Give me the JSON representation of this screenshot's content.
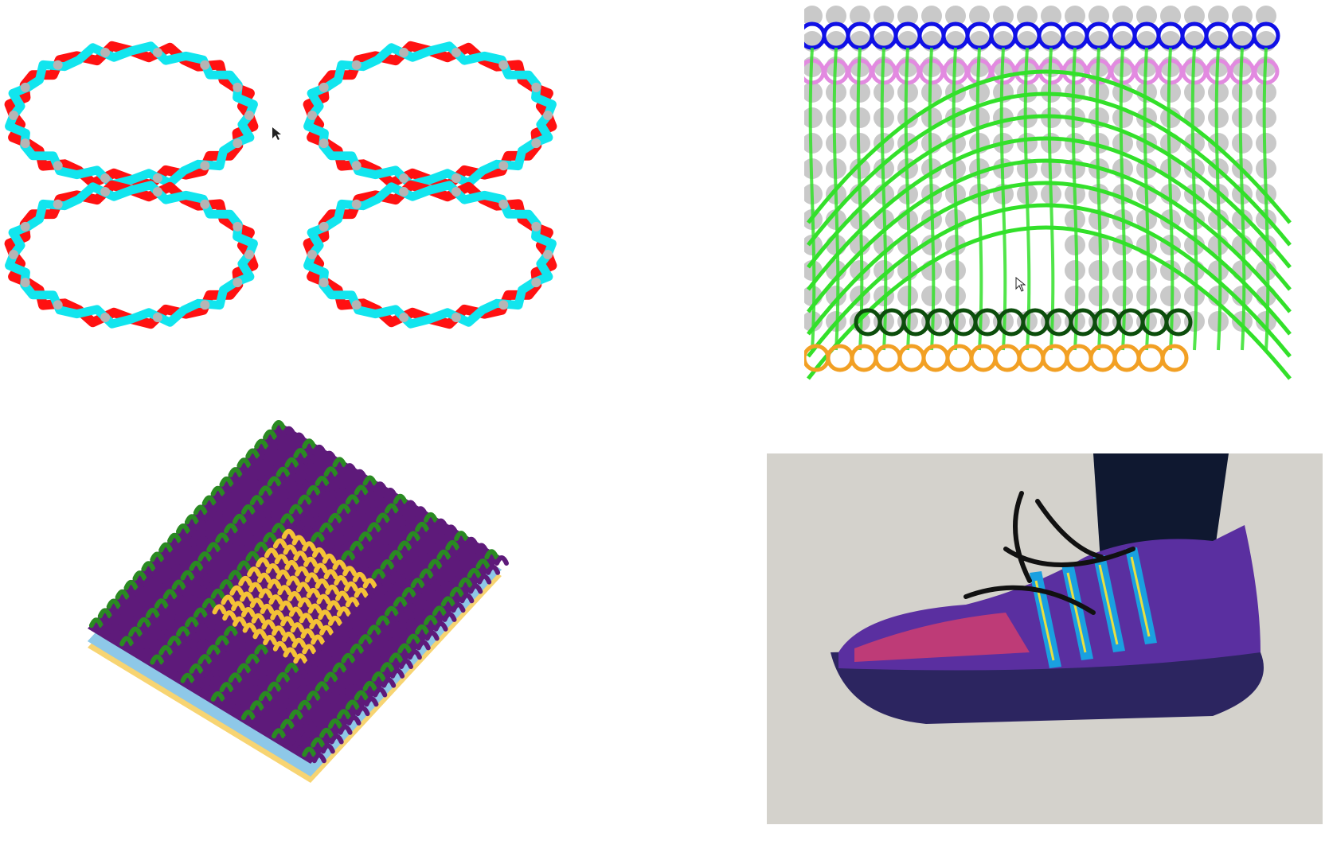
{
  "figure": {
    "panels": [
      {
        "id": "net-structure",
        "yarn_colors": [
          "#ff1111",
          "#11e5ee"
        ],
        "node_color": "#b5b5b5"
      },
      {
        "id": "stitch-graph",
        "yarn_colors": [
          "#1010e6",
          "#e28ae0",
          "#33e02a",
          "#0c4d0c",
          "#f2a024"
        ],
        "node_color": "#c9c9c9"
      },
      {
        "id": "knit-sample-3d",
        "yarn_colors": [
          "#2a8a22",
          "#5e1a7a",
          "#f4c236",
          "#8ec8e8"
        ]
      },
      {
        "id": "knit-shoe-photo",
        "colors": [
          "#3a2a8a",
          "#e0406a",
          "#1aa0e0",
          "#e8e040",
          "#111111",
          "#d4d2cc"
        ]
      }
    ]
  }
}
